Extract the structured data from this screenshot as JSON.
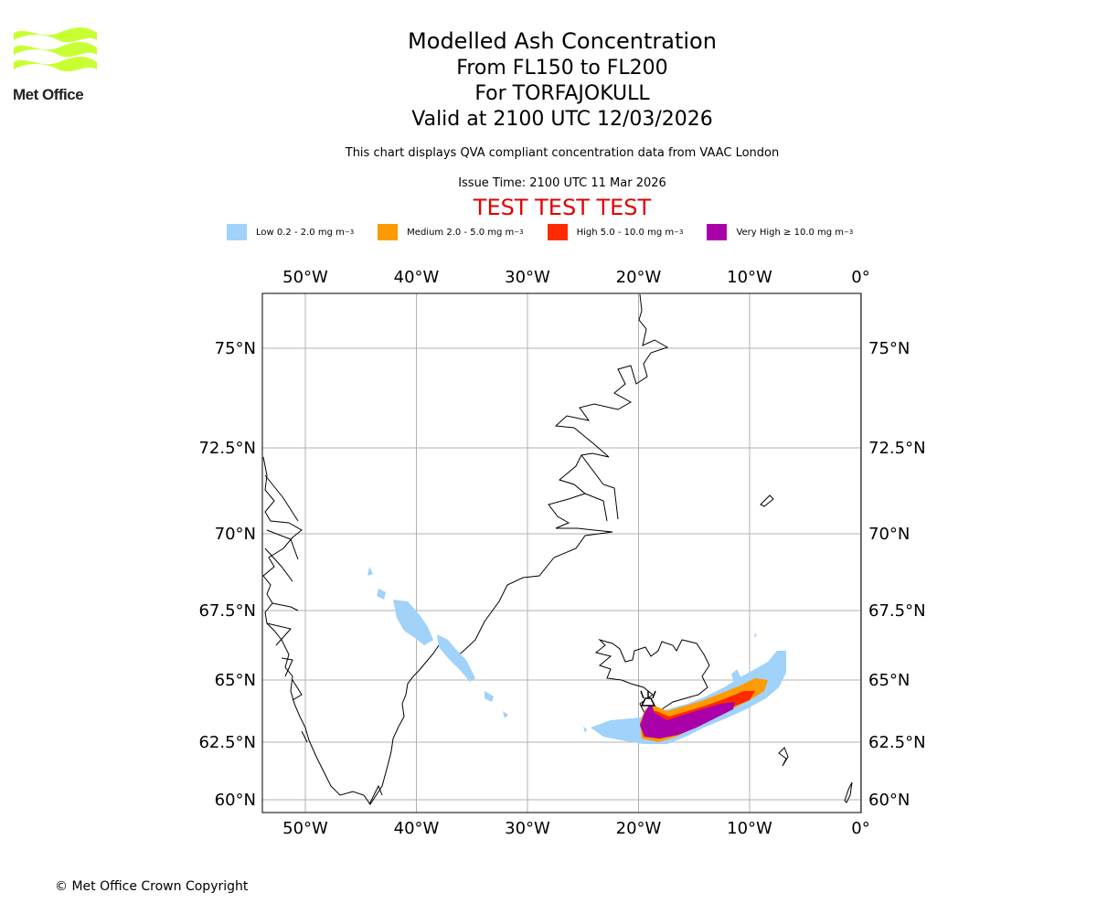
{
  "header": {
    "title": "Modelled Ash Concentration",
    "levels": "From FL150 to FL200",
    "volcano": "For TORFAJOKULL",
    "valid": "Valid at 2100 UTC 12/03/2026",
    "note": "This chart displays QVA compliant concentration data from VAAC London",
    "issue": "Issue Time: 2100 UTC 11 Mar 2026",
    "test": "TEST TEST TEST"
  },
  "logo": {
    "text": "Met Office",
    "color": "#c8ff33"
  },
  "legend": [
    {
      "label": "Low 0.2 - 2.0 mg m",
      "exp": "−3",
      "color": "#a0d2fa"
    },
    {
      "label": "Medium 2.0 - 5.0 mg m",
      "exp": "−3",
      "color": "#ff9a00"
    },
    {
      "label": "High 5.0 - 10.0 mg m",
      "exp": "−3",
      "color": "#ff2a00"
    },
    {
      "label": "Very High  ≥  10.0 mg m",
      "exp": "−3",
      "color": "#aa00aa"
    }
  ],
  "map": {
    "lon_labels": [
      "50°W",
      "40°W",
      "30°W",
      "20°W",
      "10°W",
      "0°"
    ],
    "lat_labels": [
      "75°N",
      "72.5°N",
      "70°N",
      "67.5°N",
      "65°N",
      "62.5°N",
      "60°N"
    ],
    "lon_values": [
      -50,
      -40,
      -30,
      -20,
      -10,
      0
    ],
    "lat_values": [
      75,
      72.5,
      70,
      67.5,
      65,
      62.5,
      60
    ]
  },
  "footer": {
    "copyright": "© Met Office Crown Copyright"
  }
}
